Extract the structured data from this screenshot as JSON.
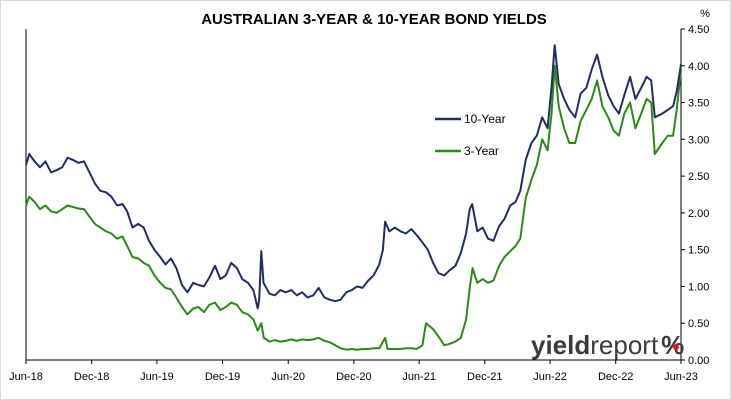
{
  "chart_data": {
    "type": "line",
    "title": "AUSTRALIAN 3-YEAR & 10-YEAR BOND YIELDS",
    "ylabel": "%",
    "y_axis_side": "right",
    "ylim": [
      0,
      4.5
    ],
    "yticks": [
      "0.00",
      "0.50",
      "1.00",
      "1.50",
      "2.00",
      "2.50",
      "3.00",
      "3.50",
      "4.00",
      "4.50"
    ],
    "xlim": [
      "2018-06-01",
      "2023-06-01"
    ],
    "xticks": [
      {
        "date": "2018-06-01",
        "label": "Jun-18"
      },
      {
        "date": "2018-12-01",
        "label": "Dec-18"
      },
      {
        "date": "2019-06-01",
        "label": "Jun-19"
      },
      {
        "date": "2019-12-01",
        "label": "Dec-19"
      },
      {
        "date": "2020-06-01",
        "label": "Jun-20"
      },
      {
        "date": "2020-12-01",
        "label": "Dec-20"
      },
      {
        "date": "2021-06-01",
        "label": "Jun-21"
      },
      {
        "date": "2021-12-01",
        "label": "Dec-21"
      },
      {
        "date": "2022-06-01",
        "label": "Jun-22"
      },
      {
        "date": "2022-12-01",
        "label": "Dec-22"
      },
      {
        "date": "2023-06-01",
        "label": "Jun-23"
      }
    ],
    "grid": false,
    "legend_position": "center-right",
    "series": [
      {
        "name": "10-Year",
        "color": "#1f2d6b",
        "points": [
          [
            "2018-06-01",
            2.65
          ],
          [
            "2018-06-10",
            2.8
          ],
          [
            "2018-06-25",
            2.7
          ],
          [
            "2018-07-10",
            2.62
          ],
          [
            "2018-07-25",
            2.7
          ],
          [
            "2018-08-10",
            2.55
          ],
          [
            "2018-08-25",
            2.58
          ],
          [
            "2018-09-10",
            2.62
          ],
          [
            "2018-09-25",
            2.75
          ],
          [
            "2018-10-10",
            2.72
          ],
          [
            "2018-10-25",
            2.68
          ],
          [
            "2018-11-10",
            2.7
          ],
          [
            "2018-11-25",
            2.55
          ],
          [
            "2018-12-10",
            2.4
          ],
          [
            "2018-12-25",
            2.3
          ],
          [
            "2019-01-10",
            2.28
          ],
          [
            "2019-01-25",
            2.22
          ],
          [
            "2019-02-10",
            2.1
          ],
          [
            "2019-02-25",
            2.12
          ],
          [
            "2019-03-10",
            2.02
          ],
          [
            "2019-03-25",
            1.8
          ],
          [
            "2019-04-10",
            1.85
          ],
          [
            "2019-04-25",
            1.8
          ],
          [
            "2019-05-10",
            1.62
          ],
          [
            "2019-05-25",
            1.5
          ],
          [
            "2019-06-10",
            1.4
          ],
          [
            "2019-06-25",
            1.3
          ],
          [
            "2019-07-10",
            1.38
          ],
          [
            "2019-07-25",
            1.25
          ],
          [
            "2019-08-10",
            1.02
          ],
          [
            "2019-08-25",
            0.92
          ],
          [
            "2019-09-10",
            1.05
          ],
          [
            "2019-09-25",
            1.02
          ],
          [
            "2019-10-10",
            1.0
          ],
          [
            "2019-10-25",
            1.12
          ],
          [
            "2019-11-10",
            1.28
          ],
          [
            "2019-11-25",
            1.1
          ],
          [
            "2019-12-10",
            1.15
          ],
          [
            "2019-12-25",
            1.32
          ],
          [
            "2020-01-10",
            1.25
          ],
          [
            "2020-01-25",
            1.1
          ],
          [
            "2020-02-10",
            1.05
          ],
          [
            "2020-02-25",
            0.95
          ],
          [
            "2020-03-08",
            0.7
          ],
          [
            "2020-03-12",
            0.82
          ],
          [
            "2020-03-18",
            1.48
          ],
          [
            "2020-03-24",
            1.05
          ],
          [
            "2020-04-10",
            0.9
          ],
          [
            "2020-04-25",
            0.88
          ],
          [
            "2020-05-10",
            0.95
          ],
          [
            "2020-05-25",
            0.92
          ],
          [
            "2020-06-10",
            0.95
          ],
          [
            "2020-06-25",
            0.88
          ],
          [
            "2020-07-10",
            0.92
          ],
          [
            "2020-07-25",
            0.85
          ],
          [
            "2020-08-10",
            0.88
          ],
          [
            "2020-08-25",
            0.98
          ],
          [
            "2020-09-10",
            0.85
          ],
          [
            "2020-09-25",
            0.82
          ],
          [
            "2020-10-10",
            0.8
          ],
          [
            "2020-10-25",
            0.82
          ],
          [
            "2020-11-10",
            0.92
          ],
          [
            "2020-11-25",
            0.95
          ],
          [
            "2020-12-10",
            1.0
          ],
          [
            "2020-12-25",
            0.98
          ],
          [
            "2021-01-10",
            1.08
          ],
          [
            "2021-01-25",
            1.15
          ],
          [
            "2021-02-10",
            1.3
          ],
          [
            "2021-02-20",
            1.5
          ],
          [
            "2021-02-26",
            1.88
          ],
          [
            "2021-03-10",
            1.75
          ],
          [
            "2021-03-25",
            1.8
          ],
          [
            "2021-04-10",
            1.75
          ],
          [
            "2021-04-25",
            1.72
          ],
          [
            "2021-05-10",
            1.78
          ],
          [
            "2021-05-25",
            1.7
          ],
          [
            "2021-06-10",
            1.6
          ],
          [
            "2021-06-25",
            1.5
          ],
          [
            "2021-07-10",
            1.32
          ],
          [
            "2021-07-25",
            1.18
          ],
          [
            "2021-08-10",
            1.15
          ],
          [
            "2021-08-25",
            1.22
          ],
          [
            "2021-09-10",
            1.28
          ],
          [
            "2021-09-25",
            1.45
          ],
          [
            "2021-10-10",
            1.72
          ],
          [
            "2021-10-20",
            2.05
          ],
          [
            "2021-10-27",
            2.12
          ],
          [
            "2021-11-10",
            1.75
          ],
          [
            "2021-11-25",
            1.8
          ],
          [
            "2021-12-10",
            1.65
          ],
          [
            "2021-12-25",
            1.62
          ],
          [
            "2022-01-10",
            1.82
          ],
          [
            "2022-01-25",
            1.92
          ],
          [
            "2022-02-10",
            2.1
          ],
          [
            "2022-02-25",
            2.15
          ],
          [
            "2022-03-10",
            2.3
          ],
          [
            "2022-03-25",
            2.72
          ],
          [
            "2022-04-10",
            2.95
          ],
          [
            "2022-04-25",
            3.05
          ],
          [
            "2022-05-10",
            3.3
          ],
          [
            "2022-05-25",
            3.15
          ],
          [
            "2022-06-05",
            3.7
          ],
          [
            "2022-06-14",
            4.28
          ],
          [
            "2022-06-25",
            3.75
          ],
          [
            "2022-07-10",
            3.55
          ],
          [
            "2022-07-25",
            3.4
          ],
          [
            "2022-08-10",
            3.3
          ],
          [
            "2022-08-25",
            3.62
          ],
          [
            "2022-09-10",
            3.7
          ],
          [
            "2022-09-25",
            3.95
          ],
          [
            "2022-10-10",
            4.15
          ],
          [
            "2022-10-25",
            3.85
          ],
          [
            "2022-11-10",
            3.6
          ],
          [
            "2022-11-25",
            3.45
          ],
          [
            "2022-12-10",
            3.35
          ],
          [
            "2022-12-25",
            3.6
          ],
          [
            "2023-01-10",
            3.85
          ],
          [
            "2023-01-25",
            3.55
          ],
          [
            "2023-02-10",
            3.7
          ],
          [
            "2023-02-25",
            3.85
          ],
          [
            "2023-03-10",
            3.8
          ],
          [
            "2023-03-20",
            3.3
          ],
          [
            "2023-04-10",
            3.35
          ],
          [
            "2023-04-25",
            3.4
          ],
          [
            "2023-05-10",
            3.45
          ],
          [
            "2023-05-20",
            3.65
          ],
          [
            "2023-06-01",
            4.02
          ]
        ]
      },
      {
        "name": "3-Year",
        "color": "#2a8a16",
        "points": [
          [
            "2018-06-01",
            2.1
          ],
          [
            "2018-06-10",
            2.22
          ],
          [
            "2018-06-25",
            2.15
          ],
          [
            "2018-07-10",
            2.05
          ],
          [
            "2018-07-25",
            2.1
          ],
          [
            "2018-08-10",
            2.02
          ],
          [
            "2018-08-25",
            2.0
          ],
          [
            "2018-09-10",
            2.05
          ],
          [
            "2018-09-25",
            2.1
          ],
          [
            "2018-10-10",
            2.08
          ],
          [
            "2018-10-25",
            2.06
          ],
          [
            "2018-11-10",
            2.05
          ],
          [
            "2018-11-25",
            1.95
          ],
          [
            "2018-12-10",
            1.85
          ],
          [
            "2018-12-25",
            1.8
          ],
          [
            "2019-01-10",
            1.75
          ],
          [
            "2019-01-25",
            1.72
          ],
          [
            "2019-02-10",
            1.65
          ],
          [
            "2019-02-25",
            1.68
          ],
          [
            "2019-03-10",
            1.55
          ],
          [
            "2019-03-25",
            1.4
          ],
          [
            "2019-04-10",
            1.38
          ],
          [
            "2019-04-25",
            1.32
          ],
          [
            "2019-05-10",
            1.28
          ],
          [
            "2019-05-25",
            1.15
          ],
          [
            "2019-06-10",
            1.05
          ],
          [
            "2019-06-25",
            0.98
          ],
          [
            "2019-07-10",
            0.96
          ],
          [
            "2019-07-25",
            0.85
          ],
          [
            "2019-08-10",
            0.72
          ],
          [
            "2019-08-25",
            0.62
          ],
          [
            "2019-09-10",
            0.7
          ],
          [
            "2019-09-25",
            0.72
          ],
          [
            "2019-10-10",
            0.65
          ],
          [
            "2019-10-25",
            0.75
          ],
          [
            "2019-11-10",
            0.78
          ],
          [
            "2019-11-25",
            0.68
          ],
          [
            "2019-12-10",
            0.72
          ],
          [
            "2019-12-25",
            0.78
          ],
          [
            "2020-01-10",
            0.75
          ],
          [
            "2020-01-25",
            0.65
          ],
          [
            "2020-02-10",
            0.62
          ],
          [
            "2020-02-25",
            0.55
          ],
          [
            "2020-03-08",
            0.4
          ],
          [
            "2020-03-18",
            0.5
          ],
          [
            "2020-03-25",
            0.3
          ],
          [
            "2020-04-10",
            0.25
          ],
          [
            "2020-04-25",
            0.27
          ],
          [
            "2020-05-10",
            0.25
          ],
          [
            "2020-05-25",
            0.26
          ],
          [
            "2020-06-10",
            0.28
          ],
          [
            "2020-06-25",
            0.26
          ],
          [
            "2020-07-10",
            0.28
          ],
          [
            "2020-07-25",
            0.27
          ],
          [
            "2020-08-10",
            0.28
          ],
          [
            "2020-08-25",
            0.3
          ],
          [
            "2020-09-10",
            0.26
          ],
          [
            "2020-09-25",
            0.24
          ],
          [
            "2020-10-10",
            0.2
          ],
          [
            "2020-10-25",
            0.16
          ],
          [
            "2020-11-10",
            0.14
          ],
          [
            "2020-11-25",
            0.15
          ],
          [
            "2020-12-10",
            0.14
          ],
          [
            "2020-12-25",
            0.15
          ],
          [
            "2021-01-10",
            0.15
          ],
          [
            "2021-01-25",
            0.16
          ],
          [
            "2021-02-10",
            0.16
          ],
          [
            "2021-02-26",
            0.3
          ],
          [
            "2021-03-05",
            0.15
          ],
          [
            "2021-03-25",
            0.15
          ],
          [
            "2021-04-10",
            0.15
          ],
          [
            "2021-04-25",
            0.16
          ],
          [
            "2021-05-10",
            0.16
          ],
          [
            "2021-05-25",
            0.15
          ],
          [
            "2021-06-10",
            0.2
          ],
          [
            "2021-06-20",
            0.5
          ],
          [
            "2021-07-10",
            0.42
          ],
          [
            "2021-07-25",
            0.32
          ],
          [
            "2021-08-10",
            0.2
          ],
          [
            "2021-08-25",
            0.22
          ],
          [
            "2021-09-10",
            0.25
          ],
          [
            "2021-09-25",
            0.3
          ],
          [
            "2021-10-10",
            0.55
          ],
          [
            "2021-10-20",
            0.98
          ],
          [
            "2021-10-28",
            1.25
          ],
          [
            "2021-11-10",
            1.05
          ],
          [
            "2021-11-25",
            1.1
          ],
          [
            "2021-12-10",
            1.05
          ],
          [
            "2021-12-25",
            1.08
          ],
          [
            "2022-01-10",
            1.28
          ],
          [
            "2022-01-25",
            1.4
          ],
          [
            "2022-02-10",
            1.48
          ],
          [
            "2022-02-25",
            1.55
          ],
          [
            "2022-03-10",
            1.65
          ],
          [
            "2022-03-25",
            2.2
          ],
          [
            "2022-04-10",
            2.45
          ],
          [
            "2022-04-25",
            2.65
          ],
          [
            "2022-05-10",
            3.0
          ],
          [
            "2022-05-25",
            2.85
          ],
          [
            "2022-06-05",
            3.35
          ],
          [
            "2022-06-14",
            4.0
          ],
          [
            "2022-06-25",
            3.45
          ],
          [
            "2022-07-10",
            3.15
          ],
          [
            "2022-07-25",
            2.95
          ],
          [
            "2022-08-10",
            2.95
          ],
          [
            "2022-08-25",
            3.25
          ],
          [
            "2022-09-10",
            3.4
          ],
          [
            "2022-09-25",
            3.55
          ],
          [
            "2022-10-10",
            3.8
          ],
          [
            "2022-10-25",
            3.45
          ],
          [
            "2022-11-10",
            3.3
          ],
          [
            "2022-11-25",
            3.12
          ],
          [
            "2022-12-10",
            3.05
          ],
          [
            "2022-12-25",
            3.35
          ],
          [
            "2023-01-10",
            3.5
          ],
          [
            "2023-01-25",
            3.15
          ],
          [
            "2023-02-10",
            3.35
          ],
          [
            "2023-02-25",
            3.55
          ],
          [
            "2023-03-10",
            3.5
          ],
          [
            "2023-03-20",
            2.8
          ],
          [
            "2023-04-10",
            2.95
          ],
          [
            "2023-04-25",
            3.05
          ],
          [
            "2023-05-10",
            3.05
          ],
          [
            "2023-05-20",
            3.4
          ],
          [
            "2023-06-01",
            3.95
          ]
        ]
      }
    ]
  },
  "branding": {
    "logo_bold": "yield",
    "logo_regular": "report",
    "logo_symbol": "%"
  }
}
